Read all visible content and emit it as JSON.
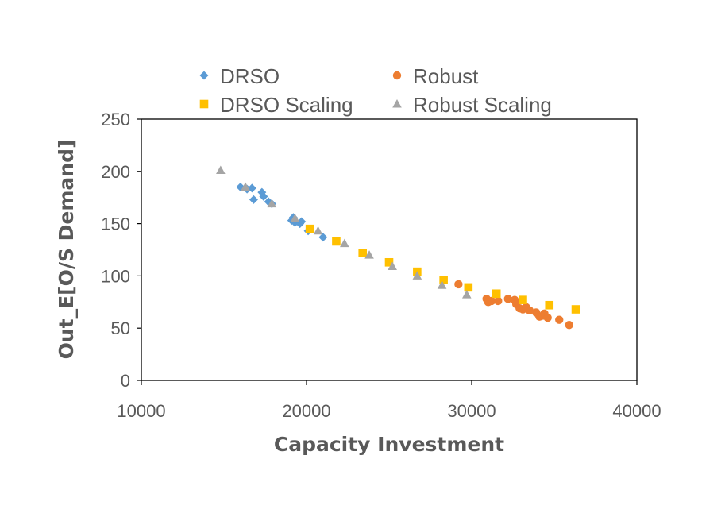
{
  "chart_data": {
    "type": "scatter",
    "title": "",
    "xlabel": "Capacity Investment",
    "ylabel": "Out_E[O/S Demand]",
    "xlim": [
      10000,
      40000
    ],
    "ylim": [
      0,
      250
    ],
    "xticks": [
      10000,
      20000,
      30000,
      40000
    ],
    "yticks": [
      0,
      50,
      100,
      150,
      200,
      250
    ],
    "grid": false,
    "legend_position": "top",
    "series": [
      {
        "name": "DRSO",
        "marker": "diamond",
        "color": "#5B9BD5",
        "x": [
          16000,
          16400,
          16700,
          16800,
          17300,
          17400,
          17700,
          17900,
          19100,
          19200,
          19300,
          19600,
          19700,
          20100,
          21000
        ],
        "y": [
          185,
          183,
          184,
          173,
          180,
          176,
          171,
          169,
          153,
          156,
          151,
          150,
          152,
          143,
          137
        ]
      },
      {
        "name": "Robust",
        "marker": "circle",
        "color": "#ED7D31",
        "x": [
          29200,
          30900,
          31000,
          31200,
          31600,
          32200,
          32600,
          32700,
          32900,
          33100,
          33300,
          33500,
          33900,
          34100,
          34300,
          34400,
          34600,
          35300,
          35900
        ],
        "y": [
          92,
          78,
          75,
          76,
          76,
          78,
          77,
          73,
          69,
          68,
          70,
          67,
          65,
          61,
          62,
          64,
          60,
          58,
          53
        ]
      },
      {
        "name": "DRSO Scaling",
        "marker": "square",
        "color": "#FFC000",
        "x": [
          20200,
          21800,
          23400,
          25000,
          26700,
          28300,
          29800,
          31500,
          33100,
          34700,
          36300
        ],
        "y": [
          145,
          133,
          122,
          113,
          104,
          96,
          89,
          83,
          77,
          72,
          68
        ]
      },
      {
        "name": "Robust Scaling",
        "marker": "triangle",
        "color": "#A5A5A5",
        "x": [
          14800,
          16300,
          17900,
          19300,
          20700,
          22300,
          23800,
          25200,
          26700,
          28200,
          29700
        ],
        "y": [
          201,
          185,
          169,
          155,
          143,
          131,
          120,
          109,
          100,
          91,
          82
        ]
      }
    ]
  }
}
